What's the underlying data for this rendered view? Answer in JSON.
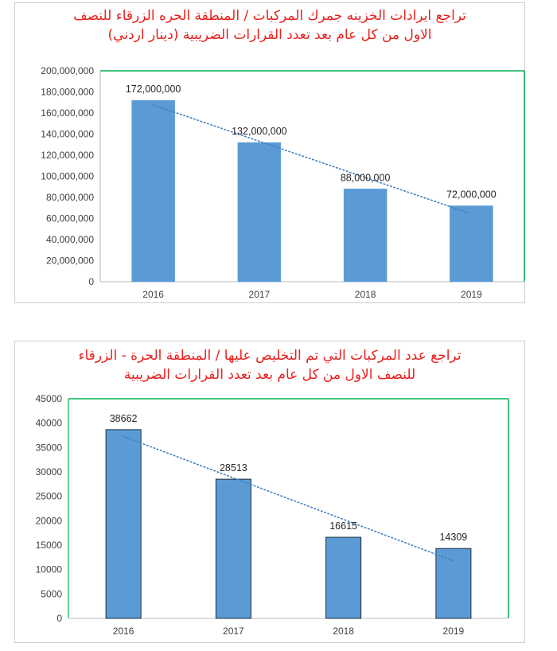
{
  "chart_data": [
    {
      "type": "bar",
      "title_lines": [
        "تراجع ايرادات الخزينه جمرك المركبات / المنطقة الحره الزرقاء للنصف",
        "الاول من كل عام بعد تعدد القرارات الضريبية (دينار اردني)"
      ],
      "categories": [
        "2016",
        "2017",
        "2018",
        "2019"
      ],
      "values": [
        172000000,
        132000000,
        88000000,
        72000000
      ],
      "data_labels": [
        "172,000,000",
        "132,000,000",
        "88,000,000",
        "72,000,000"
      ],
      "ylim": [
        0,
        200000000
      ],
      "y_ticks": [
        "0",
        "20,000,000",
        "40,000,000",
        "60,000,000",
        "80,000,000",
        "100,000,000",
        "120,000,000",
        "140,000,000",
        "160,000,000",
        "180,000,000",
        "200,000,000"
      ],
      "trendline": "linear",
      "colors": {
        "bar": "#5b9bd5",
        "bar_border": "#5b9bd5",
        "trend": "#3f7fc1",
        "plot_border": "#00b050",
        "title": "#e8211d"
      }
    },
    {
      "type": "bar",
      "title_lines": [
        "تراجع عدد المركبات التي تم التخليص عليها / المنطقة الحرة - الزرقاء",
        "للنصف الاول من كل عام بعد تعدد القرارات الضريبية"
      ],
      "categories": [
        "2016",
        "2017",
        "2018",
        "2019"
      ],
      "values": [
        38662,
        28513,
        16615,
        14309
      ],
      "data_labels": [
        "38662",
        "28513",
        "16615",
        "14309"
      ],
      "ylim": [
        0,
        45000
      ],
      "y_ticks": [
        "0",
        "5000",
        "10000",
        "15000",
        "20000",
        "25000",
        "30000",
        "35000",
        "40000",
        "45000"
      ],
      "trendline": "linear",
      "colors": {
        "bar": "#5b9bd5",
        "bar_border": "#1f2d3d",
        "trend": "#3f7fc1",
        "plot_border": "#00b050",
        "title": "#e8211d"
      }
    }
  ]
}
